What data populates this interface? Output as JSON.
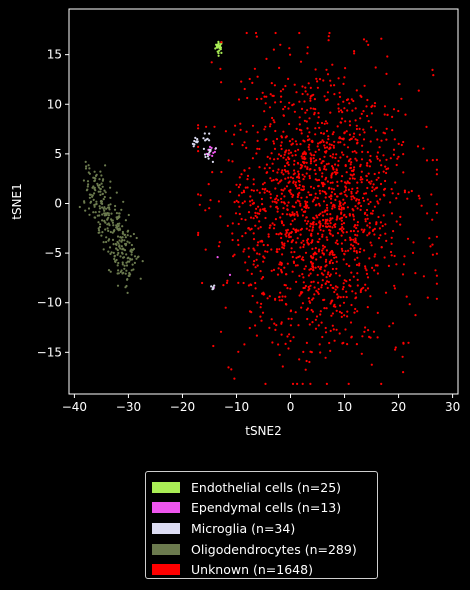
{
  "chart_data": {
    "type": "scatter",
    "title": "",
    "xlabel": "tSNE2",
    "ylabel": "tSNE1",
    "xlim": [
      -41,
      31
    ],
    "ylim": [
      -19.2,
      19.6
    ],
    "xticks": [
      -40,
      -30,
      -20,
      -10,
      0,
      10,
      20,
      30
    ],
    "yticks": [
      -15,
      -10,
      -5,
      0,
      5,
      10,
      15
    ],
    "grid": false,
    "legend_position": "bottom-center",
    "series": [
      {
        "name": "Endothelial cells (n=25)",
        "color": "#aaee55",
        "n": 25,
        "clusters": [
          {
            "cx": -13.2,
            "cy": 15.8,
            "sx": 0.35,
            "sy": 0.35
          }
        ]
      },
      {
        "name": "Ependymal cells (n=13)",
        "color": "#ee55ee",
        "n": 13,
        "points": [
          [
            -15.2,
            5.4
          ],
          [
            -14.6,
            5.6
          ],
          [
            -14.3,
            5.1
          ],
          [
            -15.0,
            4.9
          ],
          [
            -14.8,
            5.3
          ],
          [
            -14.0,
            5.2
          ],
          [
            -13.5,
            -5.4
          ],
          [
            -11.2,
            -7.2
          ],
          [
            -14.2,
            -8.5
          ],
          [
            -15.5,
            5.0
          ],
          [
            -14.5,
            4.8
          ],
          [
            -13.9,
            5.5
          ],
          [
            -14.9,
            5.7
          ]
        ]
      },
      {
        "name": "Microglia (n=34)",
        "color": "#dcdcf2",
        "n": 34,
        "clusters": [
          {
            "cx": -17.5,
            "cy": 6.1,
            "sx": 0.35,
            "sy": 0.25,
            "frac": 0.3
          },
          {
            "cx": -15.5,
            "cy": 6.6,
            "sx": 0.3,
            "sy": 0.3,
            "frac": 0.2
          },
          {
            "cx": -14.8,
            "cy": 5.0,
            "sx": 0.6,
            "sy": 0.4,
            "frac": 0.35
          },
          {
            "cx": -14.5,
            "cy": -8.5,
            "sx": 0.25,
            "sy": 0.15,
            "frac": 0.15
          }
        ]
      },
      {
        "name": "Oligodendrocytes (n=289)",
        "color": "#6b7a4e",
        "n": 289,
        "band": {
          "x0": -37.5,
          "y0": 2.5,
          "x1": -29.5,
          "y1": -6.5,
          "spread": 1.6
        }
      },
      {
        "name": "Unknown (n=1648)",
        "color": "#ff0000",
        "n": 1648,
        "clusters": [
          {
            "cx": 5,
            "cy": -0.5,
            "sx": 8.5,
            "sy": 6.8
          }
        ]
      }
    ]
  }
}
